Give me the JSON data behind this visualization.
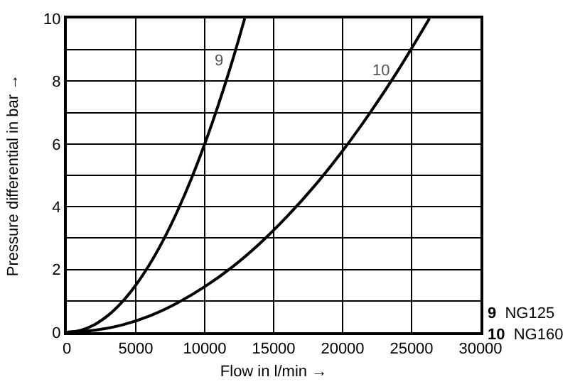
{
  "chart_data": {
    "type": "line",
    "xlabel": "Flow in l/min →",
    "ylabel": "Pressure differential in bar →",
    "xlim": [
      0,
      30000
    ],
    "xticks": [
      0,
      5000,
      10000,
      15000,
      20000,
      25000,
      30000
    ],
    "ylim": [
      0,
      10
    ],
    "yticks": [
      0,
      {
        "value": 1,
        "label": null
      },
      2,
      {
        "value": 3,
        "label": null
      },
      4,
      {
        "value": 5,
        "label": null
      },
      6,
      {
        "value": 7,
        "label": null
      },
      8,
      {
        "value": 9,
        "label": null
      },
      10
    ],
    "grid": true,
    "legend": false,
    "marker": "none",
    "line_style": "solid",
    "series": [
      {
        "name": "9",
        "color": "#000000",
        "x": [
          0,
          1000,
          2000,
          3000,
          4000,
          5000,
          6000,
          7000,
          8000,
          9000,
          10000,
          11000,
          12000,
          12900
        ],
        "values": [
          0,
          0.06,
          0.24,
          0.54,
          0.96,
          1.5,
          2.16,
          2.94,
          3.84,
          4.86,
          6.0,
          7.26,
          8.64,
          10
        ]
      },
      {
        "name": "10",
        "color": "#000000",
        "x": [
          0,
          2000,
          4000,
          6000,
          8000,
          10000,
          12000,
          14000,
          16000,
          18000,
          20000,
          22000,
          24000,
          26300
        ],
        "values": [
          0,
          0.06,
          0.23,
          0.52,
          0.93,
          1.45,
          2.08,
          2.83,
          3.7,
          4.68,
          5.78,
          7.0,
          8.33,
          10
        ]
      }
    ],
    "annotations": [
      "9 NG125",
      "10 NG160"
    ]
  }
}
